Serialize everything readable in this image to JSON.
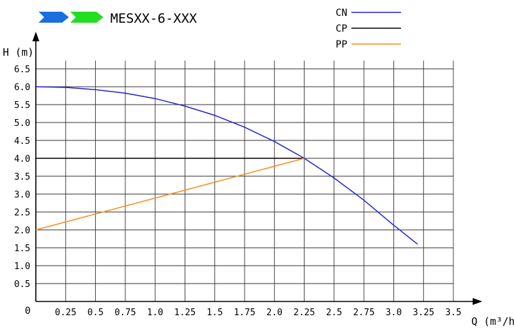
{
  "header": {
    "title": "MESXX-6-XXX",
    "arrow_colors": [
      "#1a6fe0",
      "#22dd22"
    ]
  },
  "chart_data": {
    "type": "line",
    "title": "MESXX-6-XXX",
    "xlabel": "Q (m³/h)",
    "ylabel": "H (m)",
    "xlim": [
      0,
      3.5
    ],
    "ylim": [
      0,
      6.5
    ],
    "x_ticks": [
      0.25,
      0.5,
      0.75,
      1.0,
      1.25,
      1.5,
      1.75,
      2.0,
      2.25,
      2.5,
      2.75,
      3.0,
      3.25,
      3.5
    ],
    "x_tick_labels": [
      "0.25",
      "0.5",
      "0.75",
      "1.0",
      "1.25",
      "1.5",
      "1.75",
      "2.0",
      "2.25",
      "2.5",
      "2.75",
      "3.0",
      "3.25",
      "3.5"
    ],
    "y_ticks": [
      0.5,
      1.0,
      1.5,
      2.0,
      2.5,
      3.0,
      3.5,
      4.0,
      4.5,
      5.0,
      5.5,
      6.0,
      6.5
    ],
    "y_tick_labels": [
      "0.5",
      "1.0",
      "1.5",
      "2.0",
      "2.5",
      "3.0",
      "3.5",
      "4.0",
      "4.5",
      "5.0",
      "5.5",
      "6.0",
      "6.5"
    ],
    "origin_label": "0",
    "grid": true,
    "legend_position": "top-right",
    "series": [
      {
        "name": "CN",
        "color": "#2222dd",
        "x": [
          0,
          0.25,
          0.5,
          0.75,
          1.0,
          1.25,
          1.5,
          1.75,
          2.0,
          2.25,
          2.5,
          2.75,
          3.0,
          3.2
        ],
        "y": [
          6.0,
          5.98,
          5.92,
          5.82,
          5.67,
          5.46,
          5.2,
          4.87,
          4.47,
          4.0,
          3.45,
          2.83,
          2.13,
          1.6
        ]
      },
      {
        "name": "CP",
        "color": "#000000",
        "x": [
          0,
          2.25
        ],
        "y": [
          4.0,
          4.0
        ]
      },
      {
        "name": "PP",
        "color": "#ff8c1a",
        "x": [
          0,
          2.25
        ],
        "y": [
          2.0,
          4.0
        ]
      }
    ]
  }
}
